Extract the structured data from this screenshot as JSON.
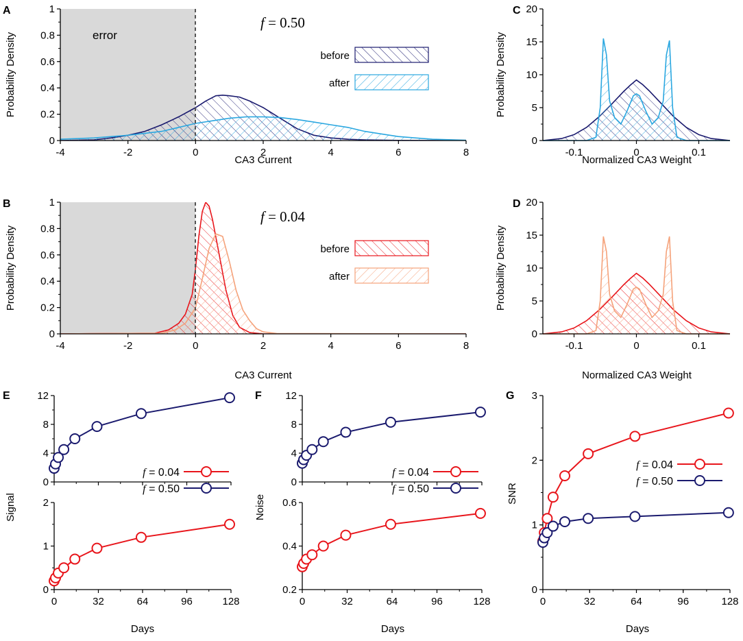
{
  "colors": {
    "navy": "#1a1a6e",
    "cyan": "#2aa7e0",
    "red": "#e8151b",
    "orange": "#f5a27a",
    "error_fill": "#d9d9d9",
    "dash": "#555555"
  },
  "chart_data": [
    {
      "panel": "A",
      "type": "area",
      "annotation_f": "f",
      "annotation_value": "= 0.50",
      "error_label": "error",
      "xlabel": "CA3 Current",
      "ylabel": "Probability Density",
      "xlim": [
        -4,
        8
      ],
      "ylim": [
        0,
        1
      ],
      "xticks": [
        "-4",
        "-2",
        "0",
        "2",
        "4",
        "6",
        "8"
      ],
      "yticks": [
        "0",
        "0.2",
        "0.4",
        "0.6",
        "0.8",
        "1"
      ],
      "legend": [
        "before",
        "after"
      ],
      "series": [
        {
          "name": "before",
          "color": "navy",
          "hatch": "back",
          "x": [
            -4,
            -3,
            -2.5,
            -2,
            -1.5,
            -1,
            -0.5,
            0,
            0.3,
            0.6,
            0.8,
            1.0,
            1.3,
            1.6,
            2,
            2.5,
            3,
            3.5,
            4,
            4.5,
            5,
            6,
            8
          ],
          "y": [
            0,
            0.005,
            0.02,
            0.04,
            0.07,
            0.12,
            0.18,
            0.25,
            0.3,
            0.34,
            0.345,
            0.34,
            0.33,
            0.3,
            0.25,
            0.17,
            0.09,
            0.04,
            0.02,
            0.01,
            0.005,
            0.001,
            0
          ]
        },
        {
          "name": "after",
          "color": "cyan",
          "hatch": "fwd",
          "x": [
            -4,
            -3,
            -2,
            -1,
            -0.5,
            0,
            0.5,
            1,
            1.5,
            2,
            2.5,
            3,
            3.5,
            4,
            4.5,
            5,
            5.5,
            6,
            6.5,
            7,
            8
          ],
          "y": [
            0.01,
            0.02,
            0.04,
            0.07,
            0.1,
            0.13,
            0.15,
            0.17,
            0.18,
            0.18,
            0.175,
            0.16,
            0.14,
            0.12,
            0.1,
            0.07,
            0.05,
            0.03,
            0.02,
            0.01,
            0.002
          ]
        }
      ]
    },
    {
      "panel": "B",
      "type": "area",
      "annotation_f": "f",
      "annotation_value": "= 0.04",
      "xlabel": "CA3 Current",
      "ylabel": "Probability Density",
      "xlim": [
        -4,
        8
      ],
      "ylim": [
        0,
        1
      ],
      "xticks": [
        "-4",
        "-2",
        "0",
        "2",
        "4",
        "6",
        "8"
      ],
      "yticks": [
        "0",
        "0.2",
        "0.4",
        "0.6",
        "0.8",
        "1"
      ],
      "legend": [
        "before",
        "after"
      ],
      "series": [
        {
          "name": "before",
          "color": "red",
          "hatch": "back",
          "x": [
            -4,
            -1.2,
            -0.8,
            -0.5,
            -0.3,
            -0.1,
            0,
            0.1,
            0.2,
            0.3,
            0.4,
            0.5,
            0.7,
            0.9,
            1.1,
            1.3,
            1.6,
            2,
            8
          ],
          "y": [
            0,
            0.005,
            0.03,
            0.08,
            0.15,
            0.3,
            0.5,
            0.75,
            0.93,
            1.0,
            0.97,
            0.87,
            0.6,
            0.33,
            0.14,
            0.05,
            0.01,
            0,
            0
          ]
        },
        {
          "name": "after",
          "color": "orange",
          "hatch": "fwd",
          "x": [
            -4,
            -1.0,
            -0.6,
            -0.3,
            0,
            0.2,
            0.4,
            0.6,
            0.8,
            1.0,
            1.2,
            1.4,
            1.6,
            1.8,
            2.0,
            2.4,
            8
          ],
          "y": [
            0,
            0.005,
            0.03,
            0.08,
            0.2,
            0.42,
            0.65,
            0.76,
            0.74,
            0.55,
            0.33,
            0.18,
            0.1,
            0.04,
            0.015,
            0.003,
            0
          ]
        }
      ]
    },
    {
      "panel": "C",
      "type": "area",
      "xlabel": "Normalized CA3 Weight",
      "ylabel": "Probability Density",
      "xlim": [
        -0.15,
        0.15
      ],
      "ylim": [
        0,
        20
      ],
      "xticks": [
        "-0.1",
        "0",
        "0.1"
      ],
      "yticks": [
        "0",
        "5",
        "10",
        "15",
        "20"
      ],
      "series": [
        {
          "name": "before",
          "color": "navy",
          "hatch": "back",
          "x": [
            -0.15,
            -0.12,
            -0.1,
            -0.08,
            -0.06,
            -0.04,
            -0.02,
            -0.01,
            0,
            0.01,
            0.02,
            0.04,
            0.06,
            0.08,
            0.1,
            0.12,
            0.15
          ],
          "y": [
            0,
            0.3,
            0.9,
            2.0,
            3.6,
            5.5,
            7.5,
            8.4,
            9.2,
            8.5,
            7.6,
            5.6,
            3.6,
            2.0,
            0.9,
            0.3,
            0
          ]
        },
        {
          "name": "after",
          "color": "cyan",
          "hatch": "fwd",
          "x": [
            -0.15,
            -0.08,
            -0.065,
            -0.058,
            -0.053,
            -0.048,
            -0.043,
            -0.035,
            -0.025,
            -0.015,
            -0.005,
            0,
            0.005,
            0.015,
            0.025,
            0.035,
            0.043,
            0.048,
            0.053,
            0.058,
            0.065,
            0.08,
            0.15
          ],
          "y": [
            0,
            0,
            0.5,
            5.0,
            15.5,
            13.0,
            6.0,
            3.5,
            2.5,
            4.5,
            6.8,
            7.1,
            6.8,
            4.5,
            2.5,
            3.5,
            6.0,
            13.0,
            15.2,
            5.0,
            0.5,
            0,
            0
          ]
        }
      ]
    },
    {
      "panel": "D",
      "type": "area",
      "xlabel": "Normalized CA3 Weight",
      "ylabel": "Probability Density",
      "xlim": [
        -0.15,
        0.15
      ],
      "ylim": [
        0,
        20
      ],
      "xticks": [
        "-0.1",
        "0",
        "0.1"
      ],
      "yticks": [
        "0",
        "5",
        "10",
        "15",
        "20"
      ],
      "series": [
        {
          "name": "before",
          "color": "red",
          "hatch": "back",
          "x": [
            -0.15,
            -0.12,
            -0.1,
            -0.08,
            -0.06,
            -0.04,
            -0.02,
            -0.01,
            0,
            0.01,
            0.02,
            0.04,
            0.06,
            0.08,
            0.1,
            0.12,
            0.15
          ],
          "y": [
            0,
            0.3,
            0.9,
            2.0,
            3.6,
            5.5,
            7.5,
            8.4,
            9.2,
            8.5,
            7.6,
            5.6,
            3.6,
            2.0,
            0.9,
            0.3,
            0
          ]
        },
        {
          "name": "after",
          "color": "orange",
          "hatch": "fwd",
          "x": [
            -0.15,
            -0.08,
            -0.065,
            -0.058,
            -0.053,
            -0.048,
            -0.043,
            -0.035,
            -0.025,
            -0.015,
            -0.005,
            0,
            0.005,
            0.015,
            0.025,
            0.035,
            0.043,
            0.048,
            0.053,
            0.058,
            0.065,
            0.08,
            0.15
          ],
          "y": [
            0,
            0,
            0.5,
            5.0,
            14.8,
            12.5,
            6.0,
            3.5,
            2.5,
            4.5,
            6.8,
            7.1,
            6.8,
            4.5,
            2.5,
            3.5,
            6.0,
            12.5,
            14.8,
            5.0,
            0.5,
            0,
            0
          ]
        }
      ]
    },
    {
      "panel": "E",
      "type": "line",
      "ylabel": "Signal",
      "xlabel": "Days",
      "xlim": [
        0,
        128
      ],
      "xticks": [
        "0",
        "32",
        "64",
        "96",
        "128"
      ],
      "top_ylim": [
        0,
        12
      ],
      "top_yticks": [
        "0",
        "4",
        "8",
        "12"
      ],
      "bottom_ylim": [
        0,
        2
      ],
      "bottom_yticks": [
        "0",
        "1",
        "2"
      ],
      "legend": [
        {
          "f": "f",
          "value": "= 0.04",
          "color": "red"
        },
        {
          "f": "f",
          "value": "= 0.50",
          "color": "navy"
        }
      ],
      "x": [
        0,
        1,
        3,
        7,
        15,
        31,
        63,
        127
      ],
      "series": [
        {
          "name": "f = 0.50",
          "color": "navy",
          "axis": "top",
          "values": [
            1.9,
            2.5,
            3.4,
            4.5,
            6.0,
            7.7,
            9.5,
            11.7
          ]
        },
        {
          "name": "f = 0.04",
          "color": "red",
          "axis": "bottom",
          "values": [
            0.2,
            0.27,
            0.38,
            0.5,
            0.7,
            0.95,
            1.2,
            1.5
          ]
        }
      ]
    },
    {
      "panel": "F",
      "type": "line",
      "ylabel": "Noise",
      "xlabel": "Days",
      "xlim": [
        0,
        128
      ],
      "xticks": [
        "0",
        "32",
        "64",
        "96",
        "128"
      ],
      "top_ylim": [
        0,
        12
      ],
      "top_yticks": [
        "0",
        "4",
        "8",
        "12"
      ],
      "bottom_ylim": [
        0.2,
        0.6
      ],
      "bottom_yticks": [
        "0.2",
        "0.4",
        "0.6"
      ],
      "legend": [
        {
          "f": "f",
          "value": "= 0.04",
          "color": "red"
        },
        {
          "f": "f",
          "value": "= 0.50",
          "color": "navy"
        }
      ],
      "x": [
        0,
        1,
        3,
        7,
        15,
        31,
        63,
        127
      ],
      "series": [
        {
          "name": "f = 0.50",
          "color": "navy",
          "axis": "top",
          "values": [
            2.6,
            3.1,
            3.7,
            4.5,
            5.6,
            6.9,
            8.3,
            9.7
          ]
        },
        {
          "name": "f = 0.04",
          "color": "red",
          "axis": "bottom",
          "values": [
            0.305,
            0.32,
            0.34,
            0.36,
            0.4,
            0.45,
            0.5,
            0.55
          ]
        }
      ]
    },
    {
      "panel": "G",
      "type": "line",
      "ylabel": "SNR",
      "xlabel": "Days",
      "xlim": [
        0,
        128
      ],
      "xticks": [
        "0",
        "32",
        "64",
        "96",
        "128"
      ],
      "ylim": [
        0,
        3
      ],
      "yticks": [
        "0",
        "1",
        "2",
        "3"
      ],
      "legend": [
        {
          "f": "f",
          "value": "= 0.04",
          "color": "red"
        },
        {
          "f": "f",
          "value": "= 0.50",
          "color": "navy"
        }
      ],
      "x": [
        0,
        1,
        3,
        7,
        15,
        31,
        63,
        127
      ],
      "series": [
        {
          "name": "f = 0.04",
          "color": "red",
          "values": [
            0.75,
            0.88,
            1.1,
            1.43,
            1.76,
            2.1,
            2.37,
            2.73
          ]
        },
        {
          "name": "f = 0.50",
          "color": "navy",
          "values": [
            0.73,
            0.8,
            0.88,
            0.98,
            1.05,
            1.1,
            1.13,
            1.19
          ]
        }
      ]
    }
  ]
}
